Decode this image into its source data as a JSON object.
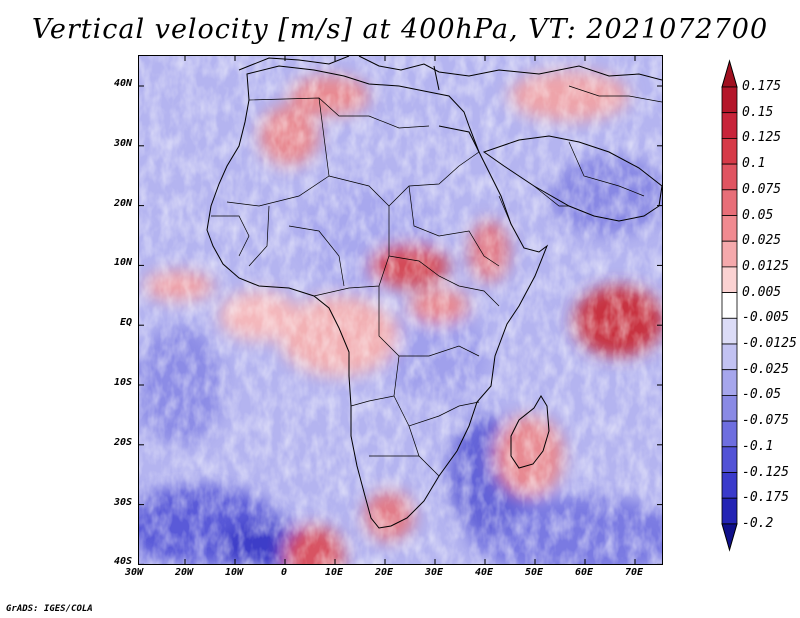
{
  "title": "Vertical velocity [m/s] at 400hPa, VT: 2021072700",
  "footer": "GrADS: IGES/COLA",
  "map": {
    "lon_range": [
      -30,
      75
    ],
    "lat_range": [
      -40,
      45
    ],
    "y_ticks": [
      "40N",
      "30N",
      "20N",
      "10N",
      "EQ",
      "10S",
      "20S",
      "30S",
      "40S"
    ],
    "x_ticks": [
      "30W",
      "20W",
      "10W",
      "0",
      "10E",
      "20E",
      "30E",
      "40E",
      "50E",
      "60E",
      "70E"
    ]
  },
  "colorbar": {
    "labels": [
      "0.175",
      "0.15",
      "0.125",
      "0.1",
      "0.075",
      "0.05",
      "0.025",
      "0.0125",
      "0.005",
      "-0.005",
      "-0.0125",
      "-0.025",
      "-0.05",
      "-0.075",
      "-0.1",
      "-0.125",
      "-0.175",
      "-0.2"
    ],
    "colors": [
      "#b4162a",
      "#c8243a",
      "#d63a48",
      "#e05461",
      "#e86e78",
      "#f08a90",
      "#f5a9ac",
      "#fbd2d2",
      "#ffffff",
      "#dcdcf7",
      "#c2c2f2",
      "#a6a6ec",
      "#8a8ae5",
      "#6e6edf",
      "#5252d6",
      "#3a3acb",
      "#2424b5",
      "#1414a0"
    ],
    "tip_top_color": "#a01020",
    "tip_bottom_color": "#10108a"
  }
}
